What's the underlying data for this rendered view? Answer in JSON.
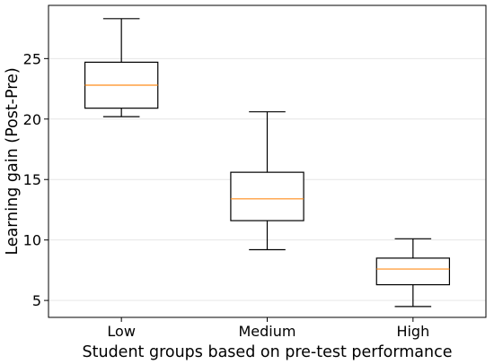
{
  "chart_data": {
    "type": "box",
    "title": "",
    "xlabel": "Student groups based on pre-test performance",
    "ylabel": "Learning gain (Post-Pre)",
    "categories": [
      "Low",
      "Medium",
      "High"
    ],
    "ylim": [
      3.6,
      29.4
    ],
    "yticks": [
      5,
      10,
      15,
      20,
      25
    ],
    "grid": "horizontal, light",
    "boxes": [
      {
        "category": "Low",
        "whisker_low": 20.2,
        "q1": 20.9,
        "median": 22.8,
        "q3": 24.7,
        "whisker_high": 28.3
      },
      {
        "category": "Medium",
        "whisker_low": 9.2,
        "q1": 11.6,
        "median": 13.4,
        "q3": 15.6,
        "whisker_high": 20.6
      },
      {
        "category": "High",
        "whisker_low": 4.5,
        "q1": 6.3,
        "median": 7.6,
        "q3": 8.5,
        "whisker_high": 10.1
      }
    ],
    "colors": {
      "box": "#000000",
      "median": "#ff8c1a",
      "grid": "#e6e6e6"
    }
  }
}
